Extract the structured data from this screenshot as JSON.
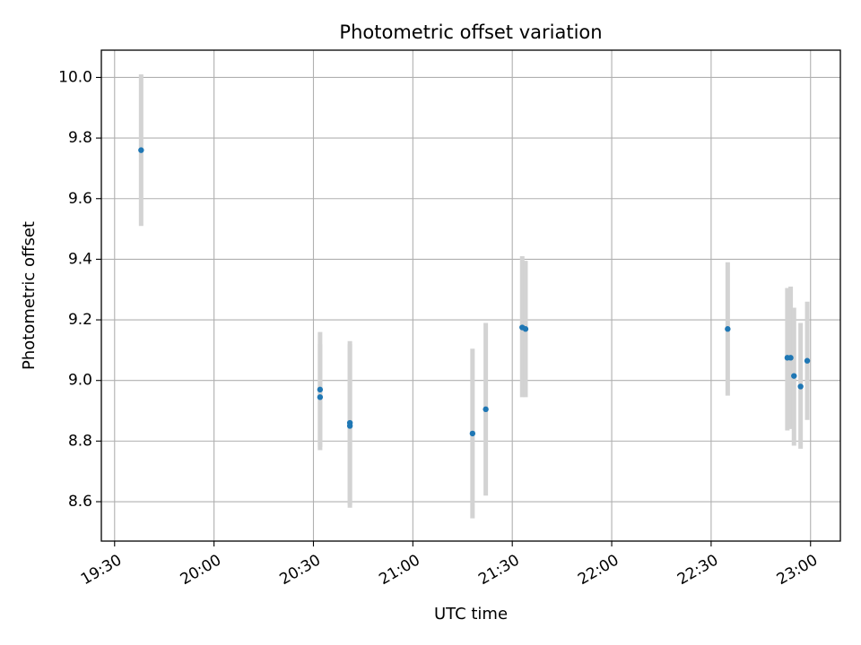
{
  "chart_data": {
    "type": "scatter",
    "title": "Photometric offset variation",
    "xlabel": "UTC time",
    "ylabel": "Photometric offset",
    "x_unit": "time-of-day (HH:MM, UTC)",
    "xlim": [
      "19:26",
      "23:09"
    ],
    "ylim": [
      8.47,
      10.09
    ],
    "x_ticks": [
      "19:30",
      "20:00",
      "20:30",
      "21:00",
      "21:30",
      "22:00",
      "22:30",
      "23:00"
    ],
    "y_ticks": [
      8.6,
      8.8,
      9.0,
      9.2,
      9.4,
      9.6,
      9.8,
      10.0
    ],
    "y_tick_labels": [
      "8.6",
      "8.8",
      "9.0",
      "9.2",
      "9.4",
      "9.6",
      "9.8",
      "10.0"
    ],
    "grid": true,
    "colors": {
      "points": "#1f77b4",
      "error_bars": "#d3d3d3",
      "grid": "#b0b0b0"
    },
    "points": [
      {
        "x": "19:38",
        "y": 9.76,
        "y_low": 9.51,
        "y_high": 10.01
      },
      {
        "x": "20:32",
        "y": 8.97,
        "y_low": 8.78,
        "y_high": 9.16
      },
      {
        "x": "20:32",
        "y": 8.945,
        "y_low": 8.77,
        "y_high": 9.12
      },
      {
        "x": "20:41",
        "y": 8.86,
        "y_low": 8.59,
        "y_high": 9.13
      },
      {
        "x": "20:41",
        "y": 8.85,
        "y_low": 8.58,
        "y_high": 9.12
      },
      {
        "x": "21:18",
        "y": 8.825,
        "y_low": 8.545,
        "y_high": 9.105
      },
      {
        "x": "21:22",
        "y": 8.905,
        "y_low": 8.62,
        "y_high": 9.19
      },
      {
        "x": "21:33",
        "y": 9.175,
        "y_low": 8.945,
        "y_high": 9.41
      },
      {
        "x": "21:34",
        "y": 9.17,
        "y_low": 8.945,
        "y_high": 9.395
      },
      {
        "x": "22:35",
        "y": 9.17,
        "y_low": 8.95,
        "y_high": 9.39
      },
      {
        "x": "22:53",
        "y": 9.075,
        "y_low": 8.835,
        "y_high": 9.305
      },
      {
        "x": "22:54",
        "y": 9.075,
        "y_low": 8.84,
        "y_high": 9.31
      },
      {
        "x": "22:55",
        "y": 9.015,
        "y_low": 8.785,
        "y_high": 9.24
      },
      {
        "x": "22:57",
        "y": 8.98,
        "y_low": 8.775,
        "y_high": 9.19
      },
      {
        "x": "22:59",
        "y": 9.065,
        "y_low": 8.87,
        "y_high": 9.26
      }
    ]
  }
}
